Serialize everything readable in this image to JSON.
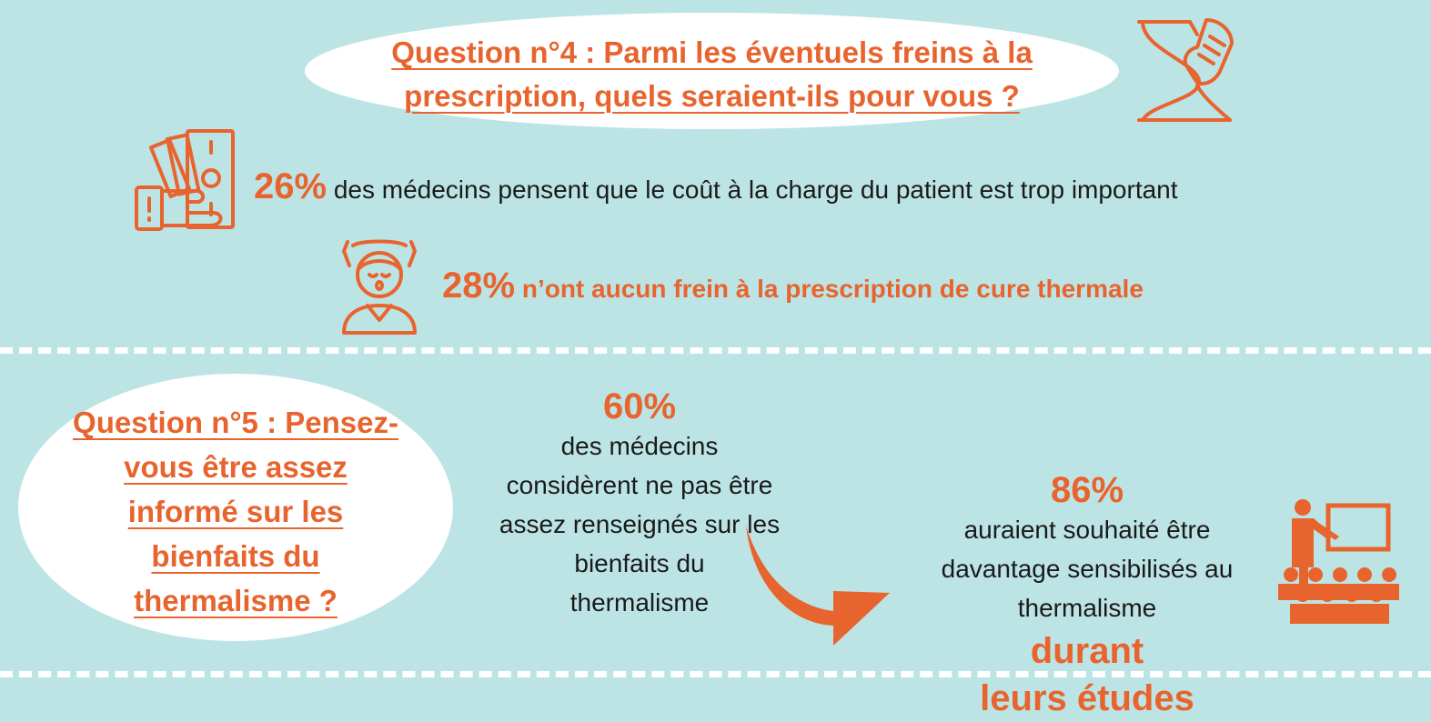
{
  "colors": {
    "accent": "#e8642e",
    "background": "#bde4e5",
    "bubble": "#ffffff",
    "text": "#1a1a1a"
  },
  "q4": {
    "title_line1": "Question n°4 : Parmi les éventuels freins à la",
    "title_line2": "prescription, quels seraient-ils pour vous ?",
    "icon": "hourglass-hand-icon"
  },
  "stat_cost": {
    "pct": "26%",
    "text": "des médecins pensent que le coût à la charge du patient est trop important",
    "icon": "money-hand-icon"
  },
  "stat_nofrein": {
    "pct": "28%",
    "text": "n’ont aucun frein à la prescription de cure thermale",
    "icon": "relaxed-person-icon"
  },
  "q5": {
    "title_lines": [
      "Question n°5 : Pensez-",
      "vous être assez",
      "informé sur les",
      "bienfaits du",
      "thermalisme ?"
    ]
  },
  "stat_60": {
    "pct": "60%",
    "line1_rest": "des médecins",
    "lines": [
      "considèrent ne pas être",
      "assez renseignés sur les",
      "bienfaits du",
      "thermalisme"
    ]
  },
  "arrow": {
    "icon": "curved-arrow-icon"
  },
  "stat_86": {
    "pct": "86%",
    "line1_rest": "auraient souhaité être",
    "line2": "davantage sensibilisés au",
    "line3_plain": "thermalisme",
    "line3_em": "durant",
    "line4_em": "leurs études",
    "icon": "classroom-teacher-icon"
  }
}
